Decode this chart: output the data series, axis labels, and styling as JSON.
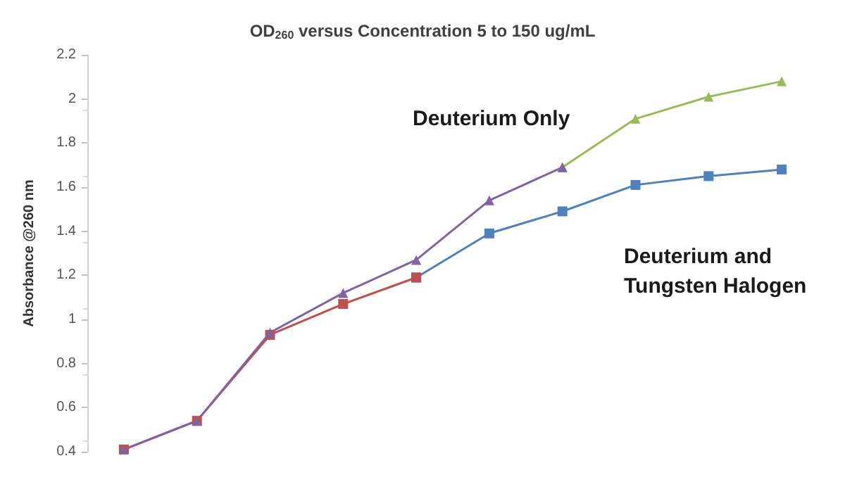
{
  "chart_data": {
    "type": "line",
    "title": "OD$_{260}$ versus Concentration 5 to 150 ug/mL",
    "ylabel": "Absorbance @260 nm",
    "categories": [
      null,
      null,
      null,
      null,
      null,
      null,
      null,
      null,
      null,
      null
    ],
    "series": [
      {
        "color": "#4f81bd",
        "marker": "square",
        "values": [
          null,
          null,
          null,
          null,
          1.19,
          1.39,
          1.49,
          1.61,
          1.65,
          1.68
        ]
      },
      {
        "color": "#c0504d",
        "marker": "square",
        "values": [
          0.41,
          0.54,
          0.93,
          1.07,
          1.19,
          null,
          null,
          null,
          null,
          null
        ]
      },
      {
        "color": "#9bbb59",
        "marker": "triangle",
        "values": [
          null,
          null,
          null,
          null,
          null,
          null,
          1.69,
          1.91,
          2.01,
          2.08
        ]
      },
      {
        "color": "#8064a2",
        "marker": "triangle",
        "values": [
          0.41,
          0.54,
          0.94,
          1.12,
          1.27,
          1.54,
          1.69,
          null,
          null,
          null
        ]
      }
    ],
    "annotations": [
      "Deuterium Only",
      "Deuterium and\nTungsten Halogen"
    ],
    "ylim": [
      0.4,
      2.2
    ],
    "yticks": [
      0.4,
      0.6,
      0.8,
      1,
      1.2,
      1.4,
      1.6,
      1.8,
      2,
      2.2
    ],
    "grid": false
  }
}
